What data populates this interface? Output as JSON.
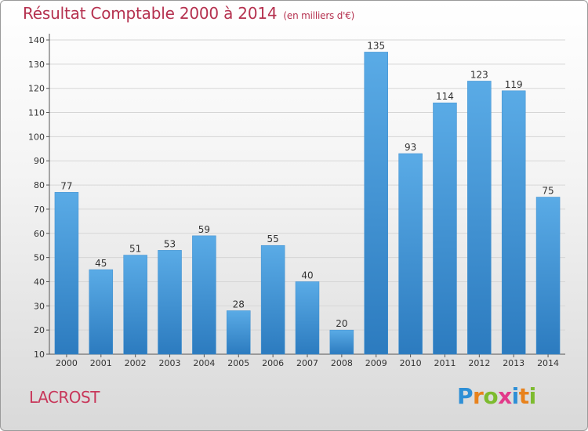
{
  "header": {
    "title": "Résultat Comptable 2000 à 2014",
    "subtitle": "(en milliers d'€)"
  },
  "footer": {
    "commune": "LACROST",
    "logo_letters": [
      "P",
      "r",
      "o",
      "x",
      "i",
      "t",
      "i"
    ],
    "logo_colors": [
      "#2e8fd6",
      "#e8821c",
      "#7dbb2f",
      "#e23a8a",
      "#2e8fd6",
      "#e8821c",
      "#7dbb2f"
    ]
  },
  "chart_data": {
    "type": "bar",
    "title": "Résultat Comptable 2000 à 2014",
    "subtitle": "(en milliers d'€)",
    "categories": [
      "2000",
      "2001",
      "2002",
      "2003",
      "2004",
      "2005",
      "2006",
      "2007",
      "2008",
      "2009",
      "2010",
      "2011",
      "2012",
      "2013",
      "2014"
    ],
    "values": [
      77,
      45,
      51,
      53,
      59,
      28,
      55,
      40,
      20,
      135,
      93,
      114,
      123,
      119,
      75
    ],
    "ylim": [
      10,
      140
    ],
    "yticks": [
      10,
      20,
      30,
      40,
      50,
      60,
      70,
      80,
      90,
      100,
      110,
      120,
      130,
      140
    ],
    "grid": true,
    "bar_color_top": "#5aabe6",
    "bar_color_bottom": "#2c7bbf"
  }
}
